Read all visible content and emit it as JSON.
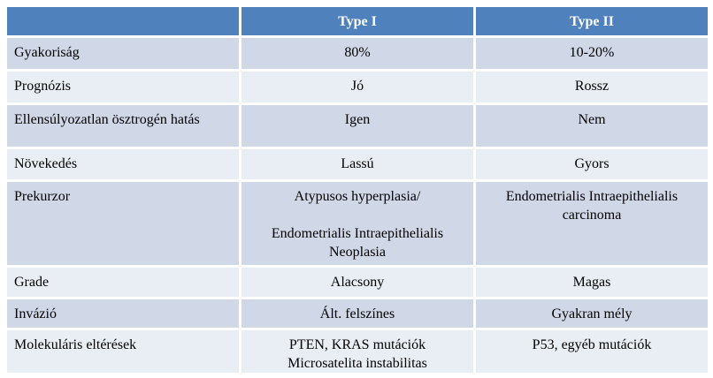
{
  "header": {
    "col1": "",
    "col2": "Type I",
    "col3": "Type II"
  },
  "rows": [
    {
      "label": "Gyakoriság",
      "type1": "80%",
      "type2": "10-20%"
    },
    {
      "label": "Prognózis",
      "type1": "Jó",
      "type2": "Rossz"
    },
    {
      "label": "Ellensúlyozatlan ösztrogén hatás",
      "type1": "Igen",
      "type2": "Nem"
    },
    {
      "label": "Növekedés",
      "type1": "Lassú",
      "type2": "Gyors"
    },
    {
      "label": "Prekurzor",
      "type1_line1": "Atypusos hyperplasia/",
      "type1_line2": "Endometrialis Intraepithelialis",
      "type1_line3": "Neoplasia",
      "type2_line1": "Endometrialis Intraepithelialis",
      "type2_line2": "carcinoma"
    },
    {
      "label": "Grade",
      "type1": "Alacsony",
      "type2": "Magas"
    },
    {
      "label": "Invázió",
      "type1": "Ált. felszínes",
      "type2": "Gyakran mély"
    },
    {
      "label": "Molekuláris eltérések",
      "type1_line1": "PTEN, KRAS mutációk",
      "type1_line2": "Microsatelita instabilitas",
      "type2": "P53, egyéb mutációk"
    }
  ]
}
